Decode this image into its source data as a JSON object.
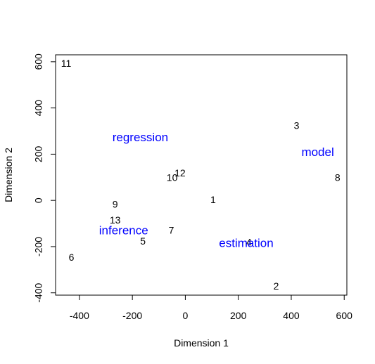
{
  "chart_data": {
    "type": "scatter",
    "xlabel": "Dimension 1",
    "ylabel": "Dimension 2",
    "xlim": [
      -490,
      610
    ],
    "ylim": [
      -410,
      630
    ],
    "xticks": [
      -400,
      -200,
      0,
      200,
      400,
      600
    ],
    "yticks": [
      -400,
      -200,
      0,
      200,
      400,
      600
    ],
    "grid": false,
    "term_color": "#0000ff",
    "points": [
      {
        "label": "1",
        "x": 105,
        "y": 0
      },
      {
        "label": "2",
        "x": 343,
        "y": -375
      },
      {
        "label": "3",
        "x": 420,
        "y": 320
      },
      {
        "label": "4",
        "x": 240,
        "y": -185
      },
      {
        "label": "5",
        "x": -160,
        "y": -180
      },
      {
        "label": "6",
        "x": -430,
        "y": -250
      },
      {
        "label": "7",
        "x": -53,
        "y": -133
      },
      {
        "label": "8",
        "x": 575,
        "y": 95
      },
      {
        "label": "9",
        "x": -265,
        "y": -20
      },
      {
        "label": "10",
        "x": -50,
        "y": 95
      },
      {
        "label": "12",
        "x": -20,
        "y": 115
      },
      {
        "label": "11",
        "x": -450,
        "y": 590
      },
      {
        "label": "13",
        "x": -265,
        "y": -88
      }
    ],
    "terms": [
      {
        "label": "regression",
        "x": -170,
        "y": 270
      },
      {
        "label": "model",
        "x": 500,
        "y": 205
      },
      {
        "label": "inference",
        "x": -233,
        "y": -133
      },
      {
        "label": "estimation",
        "x": 230,
        "y": -188
      }
    ]
  }
}
